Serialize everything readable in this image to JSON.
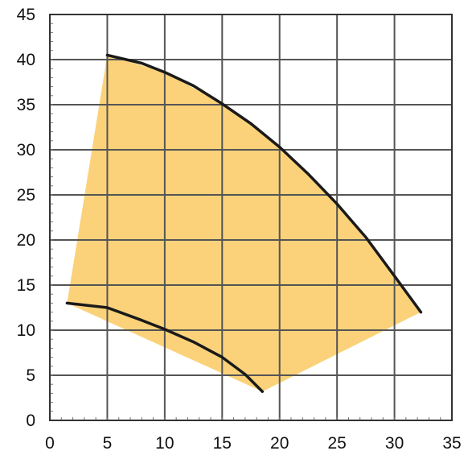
{
  "chart_data": {
    "type": "area",
    "title": "",
    "xlabel": "",
    "ylabel": "",
    "xlim": [
      0,
      35
    ],
    "ylim": [
      0,
      45
    ],
    "x_ticks": [
      0,
      5,
      10,
      15,
      20,
      25,
      30,
      35
    ],
    "y_ticks": [
      0,
      5,
      10,
      15,
      20,
      25,
      30,
      35,
      40,
      45
    ],
    "grid": true,
    "legend": "none",
    "fill_color": "#fbd27a",
    "curve_color": "#1a1a1a",
    "region": [
      [
        1.5,
        13.0
      ],
      [
        5.0,
        40.5
      ],
      [
        10.0,
        38.6
      ],
      [
        15.0,
        35.1
      ],
      [
        20.0,
        30.3
      ],
      [
        25.0,
        24.0
      ],
      [
        30.0,
        16.0
      ],
      [
        32.3,
        12.0
      ],
      [
        18.5,
        3.2
      ]
    ],
    "curves": [
      {
        "x": [
          5.0,
          8.0,
          10.0,
          12.5,
          15.0,
          17.5,
          20.0,
          22.5,
          25.0,
          27.5,
          30.0,
          32.3
        ],
        "y": [
          40.5,
          39.6,
          38.6,
          37.1,
          35.1,
          32.9,
          30.3,
          27.3,
          24.0,
          20.3,
          16.0,
          12.0
        ]
      },
      {
        "x": [
          1.5,
          5.0,
          8.0,
          10.0,
          12.5,
          15.0,
          17.0,
          18.5
        ],
        "y": [
          13.0,
          12.5,
          11.1,
          10.1,
          8.7,
          7.0,
          5.1,
          3.2
        ]
      }
    ]
  }
}
